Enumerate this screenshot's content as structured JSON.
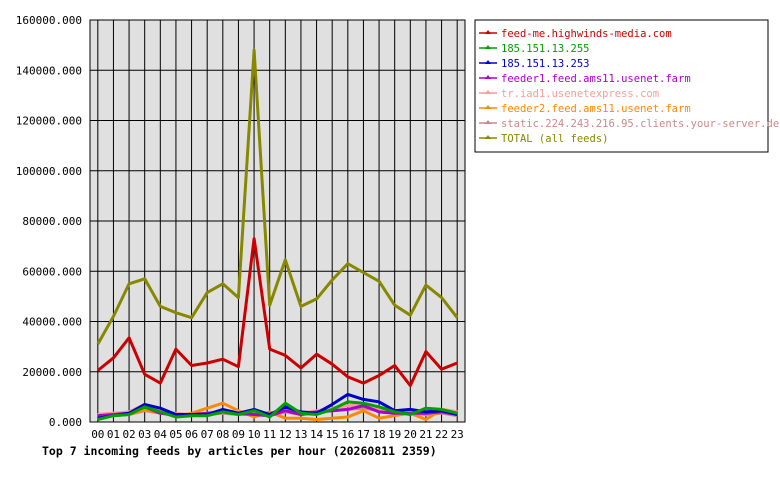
{
  "chart_data": {
    "type": "line",
    "title": "Top 7 incoming feeds by articles per hour (20260811 2359)",
    "x": [
      "00",
      "01",
      "02",
      "03",
      "04",
      "05",
      "06",
      "07",
      "08",
      "09",
      "10",
      "11",
      "12",
      "13",
      "14",
      "15",
      "16",
      "17",
      "18",
      "19",
      "20",
      "21",
      "22",
      "23"
    ],
    "ylim": [
      0,
      160000
    ],
    "yticks": [
      0,
      20000,
      40000,
      60000,
      80000,
      100000,
      120000,
      140000,
      160000
    ],
    "ytick_labels": [
      "0.000",
      "20000.000",
      "40000.000",
      "60000.000",
      "80000.000",
      "100000.000",
      "120000.000",
      "140000.000",
      "160000.000"
    ],
    "grid": true,
    "legend_position": "right",
    "series": [
      {
        "name": "feed-me.highwinds-media.com",
        "color": "#cc0000",
        "values": [
          20500,
          25500,
          33500,
          19000,
          15500,
          29000,
          22500,
          23500,
          25000,
          22000,
          73000,
          29000,
          26500,
          21500,
          27000,
          23000,
          18000,
          15500,
          18500,
          22500,
          14500,
          28000,
          21000,
          23500
        ]
      },
      {
        "name": "185.151.13.255",
        "color": "#00a000",
        "values": [
          1000,
          2500,
          3000,
          6000,
          4000,
          2000,
          2500,
          2500,
          4000,
          3000,
          4500,
          2000,
          7500,
          3500,
          3000,
          5000,
          8000,
          7500,
          6000,
          4000,
          3000,
          5500,
          5000,
          3500
        ]
      },
      {
        "name": "185.151.13.253",
        "color": "#0000cc",
        "values": [
          1500,
          2500,
          3500,
          7000,
          5500,
          3000,
          3000,
          3000,
          5000,
          3500,
          5000,
          3000,
          6000,
          4000,
          3500,
          7000,
          11000,
          9000,
          8000,
          4500,
          5000,
          4000,
          4500,
          3000
        ]
      },
      {
        "name": "feeder1.feed.ams11.usenet.farm",
        "color": "#aa00cc",
        "values": [
          2500,
          3000,
          3500,
          6000,
          3500,
          3000,
          3000,
          3500,
          4000,
          3500,
          3000,
          2500,
          4500,
          3000,
          4000,
          4500,
          5000,
          6500,
          4000,
          3500,
          3500,
          3500,
          4000,
          3000
        ]
      },
      {
        "name": "tr.iad1.usenetexpress.com",
        "color": "#ff9999",
        "values": [
          3000,
          3500,
          4000,
          7000,
          4500,
          3500,
          3000,
          3500,
          4500,
          4000,
          3500,
          3000,
          5000,
          3500,
          4500,
          5500,
          6500,
          7000,
          5000,
          4000,
          4000,
          4500,
          5000,
          4000
        ]
      },
      {
        "name": "feeder2.feed.ams11.usenet.farm",
        "color": "#ff8800",
        "values": [
          3000,
          3500,
          3000,
          5000,
          3500,
          2500,
          3500,
          5500,
          7500,
          4500,
          2000,
          4000,
          1500,
          1500,
          1000,
          1500,
          2000,
          4500,
          1500,
          2500,
          3500,
          1000,
          5000,
          4000
        ]
      },
      {
        "name": "static.224.243.216.95.clients.your-server.de",
        "color": "#cc8888",
        "values": [
          2000,
          2500,
          3000,
          4500,
          3500,
          2500,
          2500,
          3000,
          3500,
          3000,
          3000,
          2500,
          4000,
          3000,
          3500,
          4500,
          5000,
          5500,
          4500,
          3500,
          3500,
          3000,
          3500,
          2500
        ]
      },
      {
        "name": "TOTAL (all feeds)",
        "color": "#888800",
        "values": [
          31000,
          42000,
          55000,
          57000,
          46000,
          43500,
          41500,
          51500,
          55000,
          49500,
          148000,
          46500,
          64500,
          46000,
          49000,
          56500,
          63000,
          59500,
          56000,
          46500,
          42500,
          54500,
          49500,
          41500
        ]
      }
    ]
  }
}
